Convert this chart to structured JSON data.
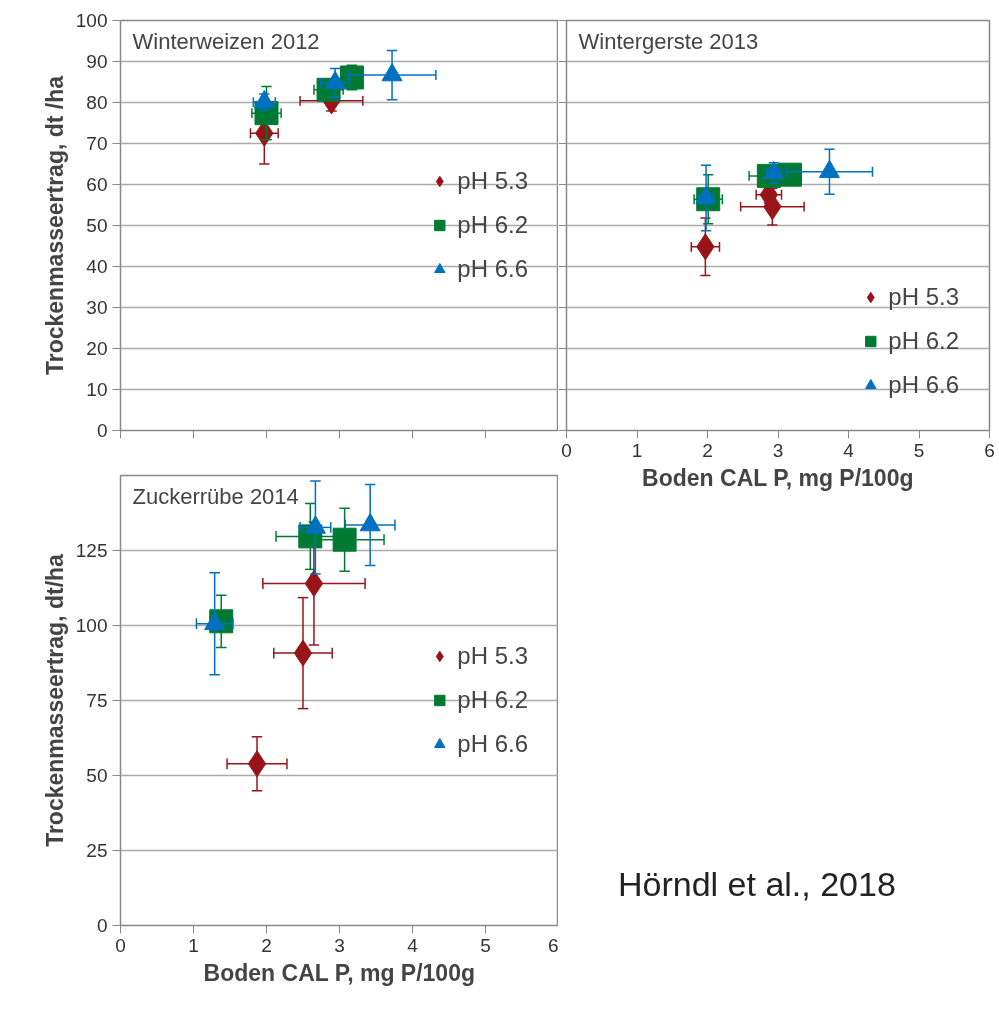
{
  "chart_data": [
    {
      "type": "scatter",
      "title": "Winterweizen 2012",
      "ylabel": "Trockenmasseertrag, dt /ha",
      "xlim": [
        0,
        6
      ],
      "xticks": [
        0,
        1,
        2,
        3,
        4,
        5,
        6
      ],
      "ylim": [
        0,
        100
      ],
      "yticks": [
        0,
        10,
        20,
        30,
        40,
        50,
        60,
        70,
        80,
        90,
        100
      ],
      "tick_labels": "y",
      "grid": "y",
      "legend": "right",
      "series": [
        {
          "name": "pH 5.3",
          "color": "#991418",
          "marker": "diamond",
          "x": [
            1.97,
            2.89
          ],
          "values": [
            72.5,
            80.4
          ],
          "errors": [
            7.5,
            2.5
          ],
          "xerrors": [
            0.19,
            0.43
          ]
        },
        {
          "name": "pH 6.2",
          "color": "#007a33",
          "marker": "square",
          "x": [
            2.0,
            2.85,
            3.17
          ],
          "values": [
            77.4,
            83.1,
            86.1
          ],
          "errors": [
            6.5,
            2.5,
            3
          ],
          "xerrors": [
            0.2,
            0.2,
            0.15
          ]
        },
        {
          "name": "pH 6.6",
          "color": "#0070c0",
          "marker": "triangle",
          "x": [
            1.97,
            2.94,
            3.72
          ],
          "values": [
            80.1,
            84.8,
            86.7
          ],
          "errors": [
            2,
            3.5,
            6
          ],
          "xerrors": [
            0.15,
            0.2,
            0.6
          ]
        }
      ]
    },
    {
      "type": "scatter",
      "title": "Wintergerste 2013",
      "xlabel": "Boden CAL P, mg P/100g",
      "xlim": [
        0,
        6
      ],
      "xticks": [
        0,
        1,
        2,
        3,
        4,
        5,
        6
      ],
      "ylim": [
        0,
        100
      ],
      "yticks": [
        0,
        10,
        20,
        30,
        40,
        50,
        60,
        70,
        80,
        90,
        100
      ],
      "tick_labels": "x",
      "grid": "y",
      "legend": "bottom right",
      "series": [
        {
          "name": "pH 5.3",
          "color": "#991418",
          "marker": "diamond",
          "x": [
            1.97,
            2.92,
            2.87
          ],
          "values": [
            44.8,
            54.6,
            57.5
          ],
          "errors": [
            7,
            4.5,
            2
          ],
          "xerrors": [
            0.2,
            0.45,
            0.18
          ]
        },
        {
          "name": "pH 6.2",
          "color": "#007a33",
          "marker": "square",
          "x": [
            2.01,
            2.87,
            3.17
          ],
          "values": [
            56.4,
            62.1,
            62.4
          ],
          "errors": [
            6,
            2.5,
            null
          ],
          "xerrors": [
            0.2,
            0.28,
            null
          ]
        },
        {
          "name": "pH 6.6",
          "color": "#0070c0",
          "marker": "triangle",
          "x": [
            1.98,
            2.94,
            3.73
          ],
          "values": [
            56.7,
            62.8,
            63.1
          ],
          "errors": [
            8,
            2.5,
            5.5
          ],
          "xerrors": [
            0.1,
            0.1,
            0.61
          ]
        }
      ]
    },
    {
      "type": "scatter",
      "title": "Zuckerrübe 2014",
      "xlabel": "Boden CAL P, mg P/100g",
      "ylabel": "Trockenmasseertrag, dt/ha",
      "xlim": [
        0,
        6
      ],
      "xticks": [
        0,
        1,
        2,
        3,
        4,
        5,
        6
      ],
      "ylim": [
        0,
        150
      ],
      "yticks": [
        0,
        25,
        50,
        75,
        100,
        125
      ],
      "grid": "y",
      "legend": "right",
      "annotations": [
        "Hörndl et al., 2018"
      ],
      "series": [
        {
          "name": "pH 5.3",
          "color": "#991418",
          "marker": "diamond",
          "x": [
            1.87,
            2.5,
            2.65
          ],
          "values": [
            53.9,
            90.8,
            114
          ],
          "errors": [
            9,
            18.5,
            20.5
          ],
          "xerrors": [
            0.41,
            0.4,
            0.7
          ]
        },
        {
          "name": "pH 6.2",
          "color": "#007a33",
          "marker": "square",
          "x": [
            1.38,
            2.6,
            3.07
          ],
          "values": [
            101.4,
            129.7,
            128.6
          ],
          "errors": [
            8.7,
            11,
            10.5
          ],
          "xerrors": [
            0.15,
            0.47,
            0.54
          ]
        },
        {
          "name": "pH 6.6",
          "color": "#0070c0",
          "marker": "triangle",
          "x": [
            1.29,
            2.67,
            3.42
          ],
          "values": [
            100.6,
            132.7,
            133.5
          ],
          "errors": [
            17,
            15.5,
            13.5
          ],
          "xerrors": [
            0.25,
            0.21,
            0.34
          ]
        }
      ]
    }
  ]
}
